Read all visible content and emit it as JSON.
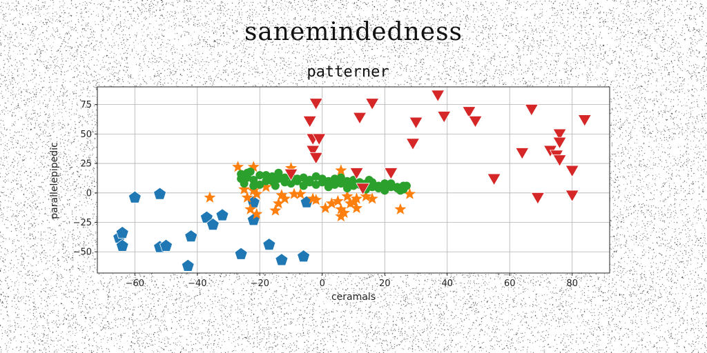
{
  "suptitle": "sanemindedness",
  "chart_data": {
    "type": "scatter",
    "title": "patterner",
    "xlabel": "ceramals",
    "ylabel": "parallelepipedic",
    "xlim": [
      -72,
      92
    ],
    "ylim": [
      -68,
      90
    ],
    "xticks": [
      -60,
      -40,
      -20,
      0,
      20,
      40,
      60,
      80
    ],
    "yticks": [
      -50,
      -25,
      0,
      25,
      50,
      75
    ],
    "grid": true,
    "legend": "none",
    "series": [
      {
        "marker": "pentagon",
        "color": "#1f77b4",
        "points": [
          [
            -60,
            -4
          ],
          [
            -52,
            -1
          ],
          [
            -65,
            -38
          ],
          [
            -64,
            -34
          ],
          [
            -64,
            -45
          ],
          [
            -52,
            -46
          ],
          [
            -50,
            -45
          ],
          [
            -42,
            -37
          ],
          [
            -43,
            -62
          ],
          [
            -37,
            -21
          ],
          [
            -35,
            -27
          ],
          [
            -32,
            -19
          ],
          [
            -26,
            -52
          ],
          [
            -22,
            -8
          ],
          [
            -22,
            -23
          ],
          [
            -17,
            -44
          ],
          [
            -13,
            -57
          ],
          [
            -6,
            -54
          ],
          [
            -5,
            -8
          ]
        ]
      },
      {
        "marker": "star",
        "color": "#ff7f0e",
        "points": [
          [
            -27,
            22
          ],
          [
            -22,
            22
          ],
          [
            -25,
            3
          ],
          [
            -24,
            -4
          ],
          [
            -22,
            2
          ],
          [
            -21,
            -1
          ],
          [
            -23,
            -14
          ],
          [
            -21,
            -18
          ],
          [
            -36,
            -4
          ],
          [
            -15,
            -15
          ],
          [
            -14,
            -9
          ],
          [
            -13,
            -2
          ],
          [
            -12,
            -5
          ],
          [
            -10,
            21
          ],
          [
            -9,
            -1
          ],
          [
            -7,
            -1
          ],
          [
            -3,
            -5
          ],
          [
            -2,
            -6
          ],
          [
            1,
            -13
          ],
          [
            5,
            -7
          ],
          [
            6,
            -14
          ],
          [
            6,
            -20
          ],
          [
            7,
            -17
          ],
          [
            8,
            -3
          ],
          [
            9,
            -9
          ],
          [
            10,
            -8
          ],
          [
            11,
            -13
          ],
          [
            11,
            -5
          ],
          [
            14,
            -3
          ],
          [
            16,
            -5
          ],
          [
            6,
            19
          ],
          [
            25,
            -14
          ],
          [
            28,
            -1
          ],
          [
            -18,
            5
          ],
          [
            3,
            -9
          ]
        ]
      },
      {
        "marker": "circle",
        "color": "#2ca02c",
        "points": [
          [
            -26,
            16
          ],
          [
            -25,
            8
          ],
          [
            -24,
            13
          ],
          [
            -23,
            18
          ],
          [
            -22,
            11
          ],
          [
            -20,
            7
          ],
          [
            -18,
            15
          ],
          [
            -16,
            10
          ],
          [
            -14,
            17
          ],
          [
            -12,
            9
          ],
          [
            -10,
            14
          ],
          [
            -8,
            12
          ],
          [
            -6,
            6
          ],
          [
            -4,
            11
          ],
          [
            -2,
            14
          ],
          [
            0,
            9
          ],
          [
            2,
            5
          ],
          [
            4,
            12
          ],
          [
            6,
            8
          ],
          [
            8,
            4
          ],
          [
            10,
            11
          ],
          [
            12,
            7
          ],
          [
            14,
            3
          ],
          [
            16,
            9
          ],
          [
            18,
            6
          ],
          [
            20,
            2
          ],
          [
            22,
            8
          ],
          [
            24,
            5
          ],
          [
            26,
            3
          ],
          [
            27,
            6
          ],
          [
            -24,
            17
          ],
          [
            -20,
            15
          ],
          [
            -16,
            14
          ],
          [
            -12,
            13
          ],
          [
            -8,
            10
          ],
          [
            -4,
            9
          ],
          [
            0,
            12
          ],
          [
            4,
            7
          ],
          [
            8,
            10
          ],
          [
            12,
            9
          ],
          [
            16,
            5
          ],
          [
            20,
            8
          ],
          [
            24,
            4
          ],
          [
            -26,
            12
          ],
          [
            -22,
            6
          ],
          [
            -18,
            10
          ],
          [
            -14,
            12
          ],
          [
            -10,
            8
          ],
          [
            -6,
            13
          ],
          [
            -2,
            7
          ],
          [
            2,
            10
          ],
          [
            6,
            13
          ],
          [
            10,
            6
          ],
          [
            14,
            8
          ],
          [
            18,
            4
          ],
          [
            22,
            5
          ],
          [
            26,
            6
          ],
          [
            -25,
            15
          ],
          [
            -15,
            6
          ],
          [
            -5,
            10
          ],
          [
            5,
            9
          ],
          [
            15,
            11
          ],
          [
            25,
            2
          ]
        ]
      },
      {
        "marker": "triangle_down",
        "color": "#d62728",
        "points": [
          [
            -2,
            77
          ],
          [
            -3,
            47
          ],
          [
            -1,
            47
          ],
          [
            -3,
            37
          ],
          [
            -2,
            31
          ],
          [
            -4,
            62
          ],
          [
            -10,
            17
          ],
          [
            12,
            65
          ],
          [
            16,
            77
          ],
          [
            22,
            18
          ],
          [
            11,
            18
          ],
          [
            13,
            5
          ],
          [
            29,
            43
          ],
          [
            30,
            61
          ],
          [
            37,
            84
          ],
          [
            39,
            66
          ],
          [
            47,
            70
          ],
          [
            49,
            62
          ],
          [
            55,
            13
          ],
          [
            64,
            35
          ],
          [
            67,
            72
          ],
          [
            69,
            -3
          ],
          [
            73,
            37
          ],
          [
            75,
            33
          ],
          [
            76,
            51
          ],
          [
            76,
            44
          ],
          [
            76,
            29
          ],
          [
            80,
            -1
          ],
          [
            80,
            20
          ],
          [
            84,
            63
          ]
        ]
      }
    ]
  }
}
